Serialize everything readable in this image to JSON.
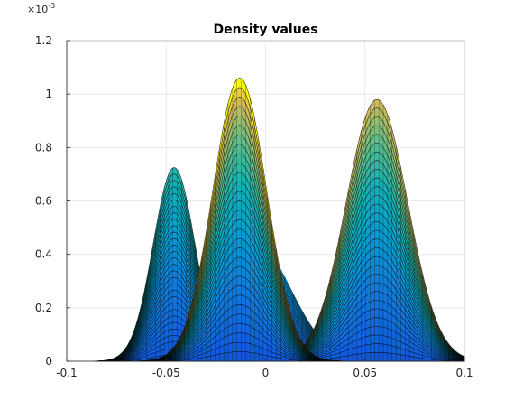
{
  "chart_data": {
    "type": "area",
    "title": "Density values",
    "xlabel": "",
    "ylabel": "",
    "y_multiplier_label": "×10",
    "y_multiplier_exponent": "-3",
    "xlim": [
      -0.1,
      0.1
    ],
    "ylim": [
      0,
      1.2
    ],
    "x_ticks": [
      -0.1,
      -0.05,
      0,
      0.05,
      0.1
    ],
    "x_tick_labels": [
      "-0.1",
      "-0.05",
      "0",
      "0.05",
      "0.1"
    ],
    "y_ticks": [
      0,
      0.2,
      0.4,
      0.6,
      0.8,
      1.0,
      1.2
    ],
    "y_tick_labels": [
      "0",
      "0.2",
      "0.4",
      "0.6",
      "0.8",
      "1",
      "1.2"
    ],
    "grid": true,
    "colormap": "parula",
    "layers": 30,
    "components": [
      {
        "name": "",
        "mean": -0.046,
        "sigma": 0.0105,
        "peak": 0.725
      },
      {
        "name": "",
        "mean": -0.013,
        "sigma": 0.0135,
        "peak": 1.06
      },
      {
        "name": "",
        "mean": -0.006,
        "sigma": 0.0185,
        "peak": 0.45
      },
      {
        "name": "",
        "mean": 0.056,
        "sigma": 0.0155,
        "peak": 0.98
      },
      {
        "name": "",
        "mean": -0.022,
        "sigma": 0.009,
        "peak": 0.035
      }
    ]
  }
}
